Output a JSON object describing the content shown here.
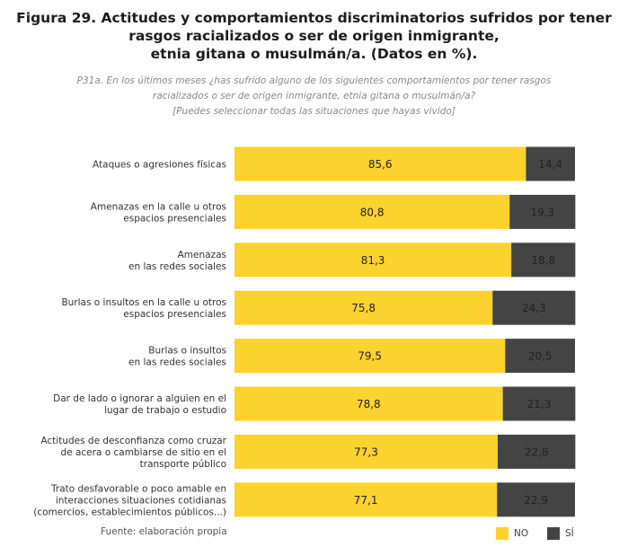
{
  "title_lines": [
    "Figura 29. Actitudes y comportamientos discriminatorios sufridos por tener",
    "rasgos racializados o ser de origen inmigrante,",
    "etnia gitana o musulmán/a. (Datos en %)."
  ],
  "subtitle_lines": [
    "P31a. En los últimos meses ¿has sufrido alguno de los siguientes comportamientos por tener rasgos",
    "racializados o ser de origen inmigrante, etnia gitana o musulmán/a?",
    "[Puedes seleccionar todas las situaciones que hayas vivido]"
  ],
  "source": "Fuente: elaboración propia",
  "colors": {
    "no": "#fcd22e",
    "si": "#444444"
  },
  "chart_data": {
    "type": "bar",
    "orientation": "horizontal",
    "stacked": true,
    "normalized_100": true,
    "title": "Figura 29. Actitudes y comportamientos discriminatorios sufridos por tener rasgos racializados o ser de origen inmigrante, etnia gitana o musulmán/a. (Datos en %).",
    "categories": [
      [
        "Ataques o agresiones físicas"
      ],
      [
        "Amenazas en la calle u otros",
        "espacios presenciales"
      ],
      [
        "Amenazas",
        "en las redes sociales"
      ],
      [
        "Burlas o insultos en la calle u otros",
        "espacios presenciales"
      ],
      [
        "Burlas o insultos",
        "en las redes sociales"
      ],
      [
        "Dar de lado o ignorar a alguien en el",
        "lugar de trabajo o estudio"
      ],
      [
        "Actitudes de desconfianza como cruzar",
        "de acera o cambiarse de sitio en el",
        "transporte público"
      ],
      [
        "Trato desfavorable o poco amable en",
        "interacciones situaciones cotidianas",
        "(comercios, establecimientos públicos...)"
      ]
    ],
    "series": [
      {
        "name": "NO",
        "values": [
          85.6,
          80.8,
          81.3,
          75.8,
          79.5,
          78.8,
          77.3,
          77.1
        ],
        "labels": [
          "85,6",
          "80,8",
          "81,3",
          "75,8",
          "79,5",
          "78,8",
          "77,3",
          "77,1"
        ]
      },
      {
        "name": "SÍ",
        "values": [
          14.4,
          19.3,
          18.8,
          24.3,
          20.5,
          21.3,
          22.8,
          22.9
        ],
        "labels": [
          "14,4",
          "19,3",
          "18,8",
          "24,3",
          "20,5",
          "21,3",
          "22,8",
          "22,9"
        ]
      }
    ],
    "xlim": [
      0,
      100
    ],
    "legend": "bottom-right",
    "grid": false
  }
}
